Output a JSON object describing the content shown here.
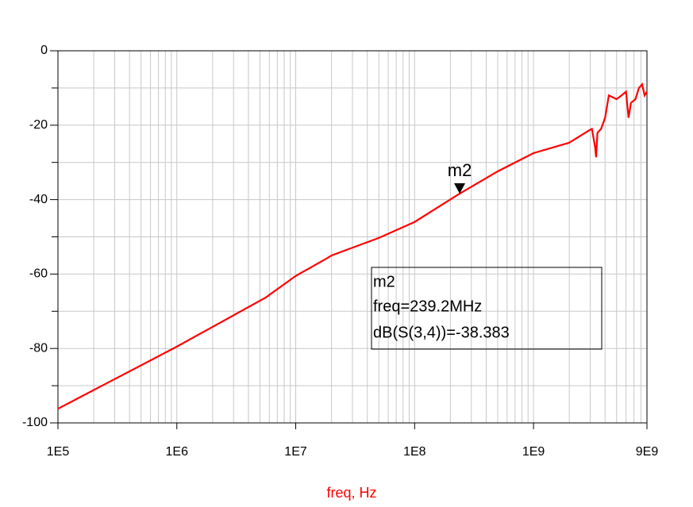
{
  "chart_data": {
    "type": "line",
    "log_x": true,
    "grid": true,
    "color": "#ff0000",
    "x_label": "freq, Hz",
    "xlim": [
      100000,
      9000000000
    ],
    "xticks": [
      {
        "value": 100000,
        "label": "1E5"
      },
      {
        "value": 1000000,
        "label": "1E6"
      },
      {
        "value": 10000000,
        "label": "1E7"
      },
      {
        "value": 100000000,
        "label": "1E8"
      },
      {
        "value": 1000000000,
        "label": "1E9"
      },
      {
        "value": 9000000000,
        "label": "9E9"
      }
    ],
    "xminorticks": [
      200000.0,
      300000.0,
      400000.0,
      500000.0,
      600000.0,
      700000.0,
      800000.0,
      900000.0,
      2000000.0,
      3000000.0,
      4000000.0,
      5000000.0,
      6000000.0,
      7000000.0,
      8000000.0,
      9000000.0,
      20000000.0,
      30000000.0,
      40000000.0,
      50000000.0,
      60000000.0,
      70000000.0,
      80000000.0,
      90000000.0,
      200000000.0,
      300000000.0,
      400000000.0,
      500000000.0,
      600000000.0,
      700000000.0,
      800000000.0,
      900000000.0,
      2000000000.0,
      3000000000.0,
      4000000000.0,
      5000000000.0,
      6000000000.0,
      7000000000.0,
      8000000000.0
    ],
    "ylim": [
      -100,
      0
    ],
    "yticks": [
      0,
      -20,
      -40,
      -60,
      -80,
      -100
    ],
    "yminorticks": [
      -10,
      -30,
      -50,
      -70,
      -90
    ],
    "x": [
      100000.0,
      1000000.0,
      5600000.0,
      10000000.0,
      18000000.0,
      20000000.0,
      50000000.0,
      100000000.0,
      239200000.0,
      500000000.0,
      1000000000.0,
      2000000000.0,
      2900000000.0,
      3100000000.0,
      3300000000.0,
      3360000000.0,
      3450000000.0,
      3700000000.0,
      4000000000.0,
      4300000000.0,
      5000000000.0,
      5500000000.0,
      6000000000.0,
      6300000000.0,
      6600000000.0,
      7200000000.0,
      7700000000.0,
      8200000000.0,
      8600000000.0,
      9000000000.0
    ],
    "values": [
      -96.2,
      -79.5,
      -66.3,
      -60.5,
      -55.9,
      -55,
      -50.3,
      -46,
      -38.383,
      -32.4,
      -27.5,
      -24.7,
      -21.5,
      -21,
      -26,
      -28.6,
      -22,
      -21,
      -18,
      -12,
      -13,
      -12,
      -11,
      -18,
      -14,
      -13,
      -10,
      -9,
      -12,
      -11
    ],
    "marker": {
      "name": "m2",
      "x": 239200000,
      "y": -38.383,
      "readout": [
        "m2",
        "freq=239.2MHz",
        "dB(S(3,4))=-38.383"
      ]
    }
  }
}
